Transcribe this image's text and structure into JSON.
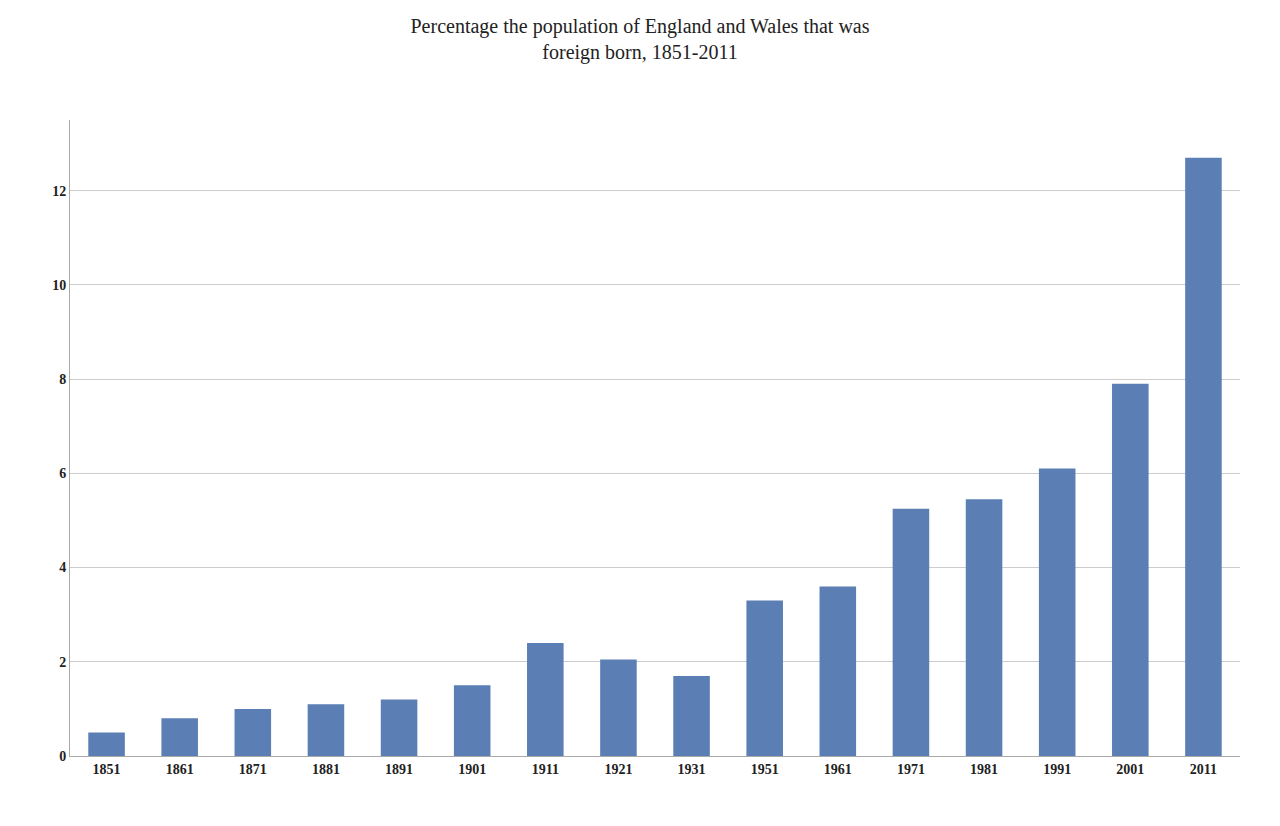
{
  "chart_data": {
    "type": "bar",
    "title": "Percentage the population of England and Wales that was\nforeign born, 1851-2011",
    "categories": [
      1851,
      1861,
      1871,
      1881,
      1891,
      1901,
      1911,
      1921,
      1931,
      1951,
      1961,
      1971,
      1981,
      1991,
      2001,
      2011
    ],
    "values": [
      0.5,
      0.8,
      1.0,
      1.1,
      1.2,
      1.5,
      2.4,
      2.05,
      1.7,
      3.3,
      3.6,
      5.25,
      5.45,
      6.1,
      7.9,
      12.7
    ],
    "color": "#5b7fb5",
    "ylim": [
      0,
      13.5
    ],
    "yticks": [
      0,
      2,
      4,
      6,
      8,
      10,
      12
    ],
    "grid": true
  }
}
